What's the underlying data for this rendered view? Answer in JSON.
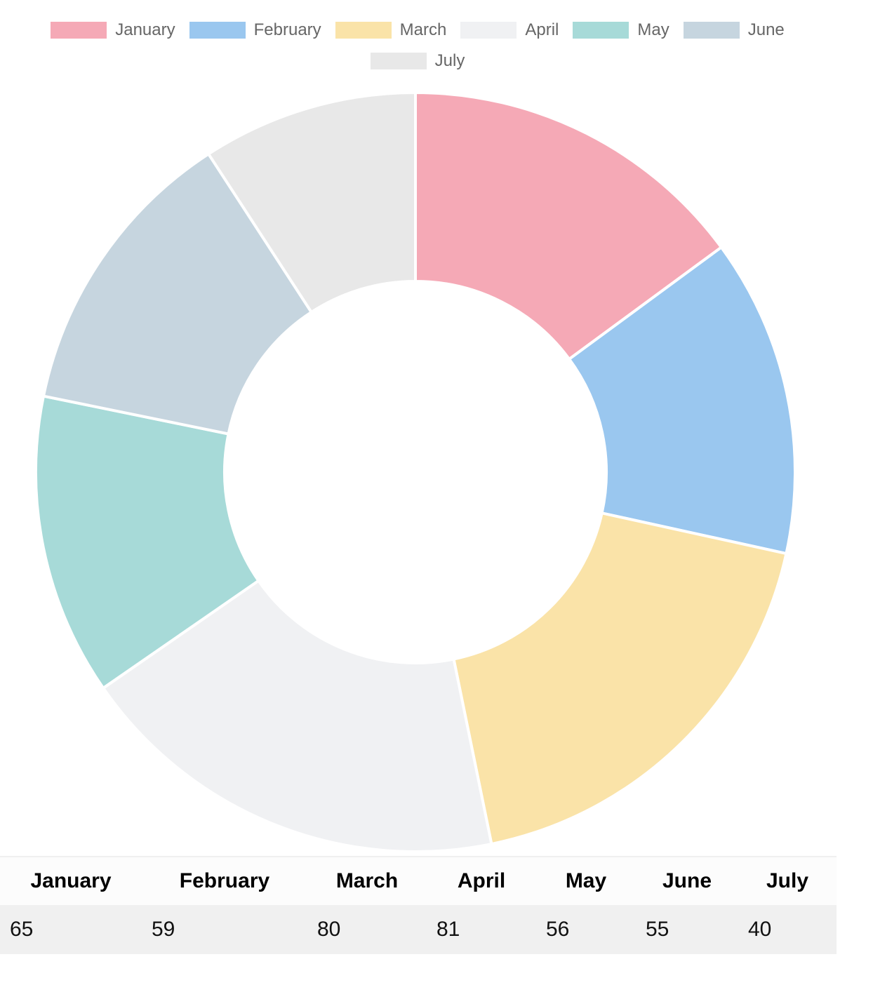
{
  "chart_data": {
    "type": "doughnut",
    "categories": [
      "January",
      "February",
      "March",
      "April",
      "May",
      "June",
      "July"
    ],
    "values": [
      65,
      59,
      80,
      81,
      56,
      55,
      40
    ],
    "colors": [
      "#f5a9b6",
      "#9ac7ef",
      "#fae3a8",
      "#f0f1f3",
      "#a7dad8",
      "#c6d5df",
      "#e8e8e8"
    ],
    "legend_position": "top",
    "segment_border_color": "#ffffff"
  },
  "table": {
    "headers": [
      "January",
      "February",
      "March",
      "April",
      "May",
      "June",
      "July"
    ],
    "values": [
      "65",
      "59",
      "80",
      "81",
      "56",
      "55",
      "40"
    ]
  }
}
